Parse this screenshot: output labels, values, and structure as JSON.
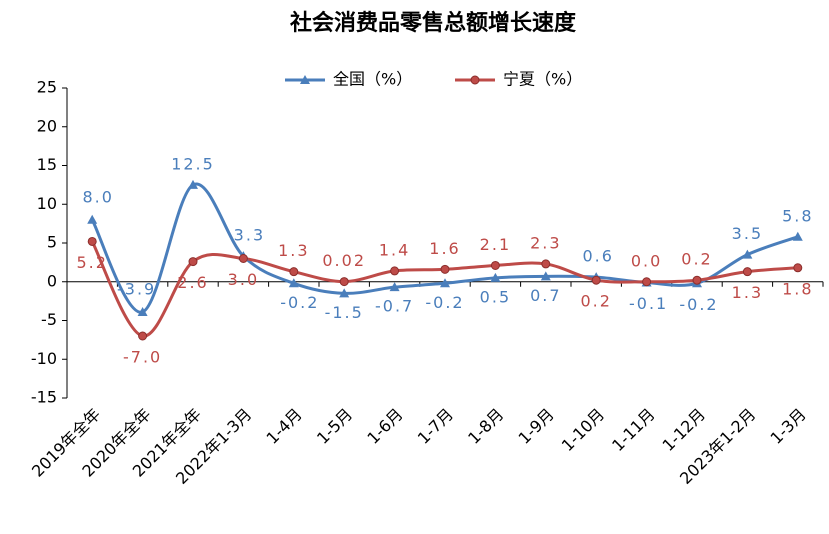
{
  "chart_data": {
    "type": "line",
    "title": "社会消费品零售总额增长速度",
    "categories": [
      "2019年全年",
      "2020年全年",
      "2021年全年",
      "2022年1-3月",
      "1-4月",
      "1-5月",
      "1-6月",
      "1-7月",
      "1-8月",
      "1-9月",
      "1-10月",
      "1-11月",
      "1-12月",
      "2023年1-2月",
      "1-3月"
    ],
    "series": [
      {
        "name": "全国（%）",
        "color": "#4a7ebb",
        "marker": "triangle",
        "values": [
          8.0,
          -3.9,
          12.5,
          3.3,
          -0.2,
          -1.5,
          -0.7,
          -0.2,
          0.5,
          0.7,
          0.6,
          -0.1,
          -0.2,
          3.5,
          5.8
        ],
        "value_labels": [
          "8.0",
          "-3.9",
          "12.5",
          "3.3",
          "-0.2",
          "-1.5",
          "-0.7",
          "-0.2",
          "0.5",
          "0.7",
          "0.6",
          "-0.1",
          "-0.2",
          "3.5",
          "5.8"
        ]
      },
      {
        "name": "宁夏（%）",
        "color": "#be4b48",
        "marker": "circle",
        "values": [
          5.2,
          -7.0,
          2.6,
          3.0,
          1.3,
          0.02,
          1.4,
          1.6,
          2.1,
          2.3,
          0.2,
          0.0,
          0.2,
          1.3,
          1.8
        ],
        "value_labels": [
          "5.2",
          "-7.0",
          "2.6",
          "3.0",
          "1.3",
          "0.02",
          "1.4",
          "1.6",
          "2.1",
          "2.3",
          "0.2",
          "0.0",
          "0.2",
          "1.3",
          "1.8"
        ]
      }
    ],
    "ylim": [
      -15,
      25
    ],
    "yticks": [
      -15,
      -10,
      -5,
      0,
      5,
      10,
      15,
      20,
      25
    ],
    "grid": false,
    "legend": "top"
  }
}
